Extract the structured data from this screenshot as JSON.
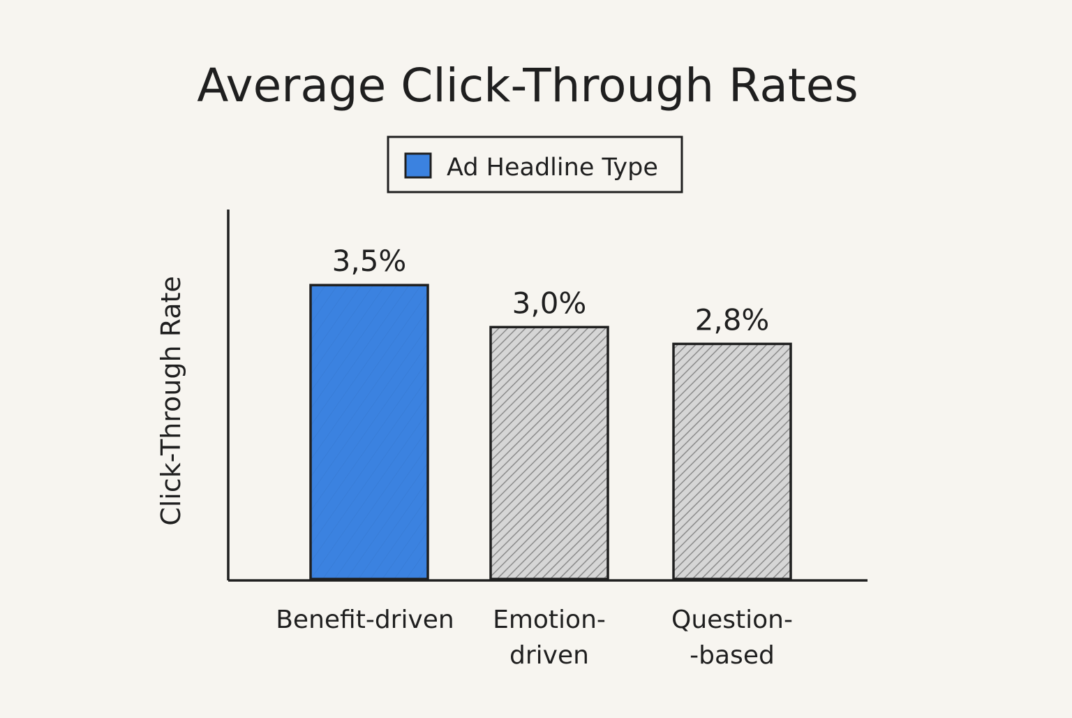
{
  "chart_data": {
    "type": "bar",
    "title": "Average Click-Through Rates",
    "ylabel": "Click-Through Rate",
    "xlabel": "",
    "legend": {
      "placement": "top-center",
      "entries": [
        {
          "label": "Ad Headline Type",
          "color": "#3b82e0"
        }
      ]
    },
    "categories": [
      [
        "Benefit-driven"
      ],
      [
        "Emotion-",
        "driven"
      ],
      [
        "Question-",
        "-based"
      ]
    ],
    "values": [
      3.5,
      3.0,
      2.8
    ],
    "value_labels": [
      "3,5%",
      "3,0%",
      "2,8%"
    ],
    "bar_styles": [
      "solid",
      "hatched",
      "hatched"
    ],
    "colors": {
      "highlight": "#3b82e0",
      "hatch_fill": "#d6d6d6",
      "hatch_line": "#8a8a8a",
      "outline": "#1f1f1f",
      "background": "#f7f5f0"
    },
    "ylim": [
      0,
      4.4
    ],
    "grid": false
  }
}
